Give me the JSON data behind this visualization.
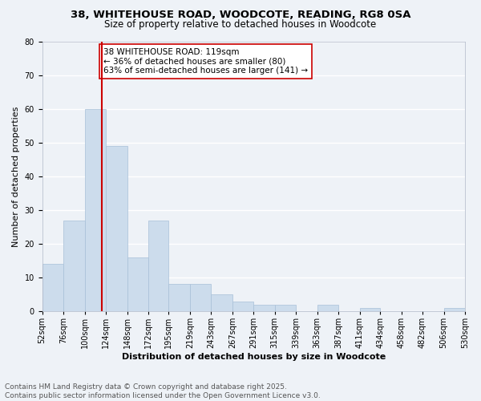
{
  "title_line1": "38, WHITEHOUSE ROAD, WOODCOTE, READING, RG8 0SA",
  "title_line2": "Size of property relative to detached houses in Woodcote",
  "xlabel": "Distribution of detached houses by size in Woodcote",
  "ylabel": "Number of detached properties",
  "bin_labels": [
    "52sqm",
    "76sqm",
    "100sqm",
    "124sqm",
    "148sqm",
    "172sqm",
    "195sqm",
    "219sqm",
    "243sqm",
    "267sqm",
    "291sqm",
    "315sqm",
    "339sqm",
    "363sqm",
    "387sqm",
    "411sqm",
    "434sqm",
    "458sqm",
    "482sqm",
    "506sqm",
    "530sqm"
  ],
  "bin_edges": [
    52,
    76,
    100,
    124,
    148,
    172,
    195,
    219,
    243,
    267,
    291,
    315,
    339,
    363,
    387,
    411,
    434,
    458,
    482,
    506,
    530
  ],
  "bar_heights": [
    14,
    27,
    60,
    49,
    16,
    27,
    8,
    8,
    5,
    3,
    2,
    2,
    0,
    2,
    0,
    1,
    0,
    0,
    0,
    1,
    0
  ],
  "bar_color": "#ccdcec",
  "bar_edge_color": "#a8c0d8",
  "vline_x": 119,
  "vline_color": "#cc0000",
  "annotation_text": "38 WHITEHOUSE ROAD: 119sqm\n← 36% of detached houses are smaller (80)\n63% of semi-detached houses are larger (141) →",
  "annotation_box_color": "#ffffff",
  "annotation_box_edge": "#cc0000",
  "ylim": [
    0,
    80
  ],
  "yticks": [
    0,
    10,
    20,
    30,
    40,
    50,
    60,
    70,
    80
  ],
  "background_color": "#eef2f7",
  "grid_color": "#ffffff",
  "footer_line1": "Contains HM Land Registry data © Crown copyright and database right 2025.",
  "footer_line2": "Contains public sector information licensed under the Open Government Licence v3.0.",
  "title_fontsize": 9.5,
  "subtitle_fontsize": 8.5,
  "axis_label_fontsize": 8,
  "tick_fontsize": 7,
  "annotation_fontsize": 7.5,
  "footer_fontsize": 6.5
}
